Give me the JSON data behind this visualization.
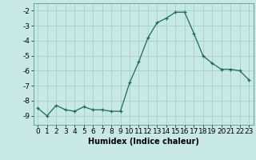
{
  "x": [
    0,
    1,
    2,
    3,
    4,
    5,
    6,
    7,
    8,
    9,
    10,
    11,
    12,
    13,
    14,
    15,
    16,
    17,
    18,
    19,
    20,
    21,
    22,
    23
  ],
  "y": [
    -8.5,
    -9.0,
    -8.3,
    -8.6,
    -8.7,
    -8.4,
    -8.6,
    -8.6,
    -8.7,
    -8.7,
    -6.8,
    -5.4,
    -3.8,
    -2.8,
    -2.5,
    -2.1,
    -2.1,
    -3.5,
    -5.0,
    -5.5,
    -5.9,
    -5.9,
    -6.0,
    -6.6
  ],
  "line_color": "#1a6b5a",
  "bg_color": "#c8e8e8",
  "grid_color": "#a0c8c8",
  "xlabel": "Humidex (Indice chaleur)",
  "ylim": [
    -9.6,
    -1.5
  ],
  "xlim": [
    -0.5,
    23.5
  ],
  "yticks": [
    -9,
    -8,
    -7,
    -6,
    -5,
    -4,
    -3,
    -2
  ],
  "xticks": [
    0,
    1,
    2,
    3,
    4,
    5,
    6,
    7,
    8,
    9,
    10,
    11,
    12,
    13,
    14,
    15,
    16,
    17,
    18,
    19,
    20,
    21,
    22,
    23
  ],
  "label_fontsize": 7,
  "tick_fontsize": 6.5
}
